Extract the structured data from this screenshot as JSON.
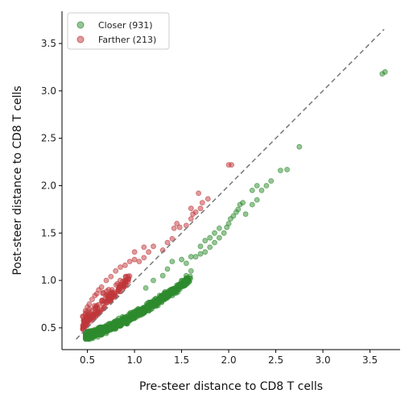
{
  "chart_data": {
    "type": "scatter",
    "title": "",
    "xlabel": "Pre-steer distance to CD8 T cells",
    "ylabel": "Post-steer distance to CD8 T cells",
    "xlim": [
      0.23,
      3.82
    ],
    "ylim": [
      0.27,
      3.84
    ],
    "xticks": [
      "0.5",
      "1.0",
      "1.5",
      "2.0",
      "2.5",
      "3.0",
      "3.5"
    ],
    "yticks": [
      "0.5",
      "1.0",
      "1.5",
      "2.0",
      "2.5",
      "3.0",
      "3.5"
    ],
    "grid": false,
    "legend_position": "top-left",
    "reference_line": {
      "style": "dashed",
      "color": "#777777",
      "from": [
        0.38,
        0.38
      ],
      "to": [
        3.65,
        3.65
      ]
    },
    "series": [
      {
        "name": "Closer (931)",
        "color": "#2e8b2e",
        "cloud": {
          "count": 931,
          "x_range": [
            0.48,
            1.6
          ]
        },
        "points": [
          [
            0.55,
            0.4
          ],
          [
            0.6,
            0.42
          ],
          [
            0.65,
            0.45
          ],
          [
            0.7,
            0.44
          ],
          [
            0.75,
            0.48
          ],
          [
            0.8,
            0.5
          ],
          [
            0.85,
            0.52
          ],
          [
            0.9,
            0.55
          ],
          [
            0.95,
            0.58
          ],
          [
            1.0,
            0.6
          ],
          [
            1.05,
            0.63
          ],
          [
            1.1,
            0.66
          ],
          [
            1.15,
            0.7
          ],
          [
            1.2,
            0.74
          ],
          [
            1.25,
            0.78
          ],
          [
            1.3,
            0.82
          ],
          [
            1.35,
            0.86
          ],
          [
            1.4,
            0.9
          ],
          [
            1.45,
            0.95
          ],
          [
            1.5,
            1.0
          ],
          [
            1.55,
            1.05
          ],
          [
            1.6,
            1.1
          ],
          [
            1.12,
            0.92
          ],
          [
            1.2,
            1.0
          ],
          [
            1.3,
            1.05
          ],
          [
            1.35,
            1.12
          ],
          [
            1.4,
            1.2
          ],
          [
            1.5,
            1.22
          ],
          [
            1.55,
            1.18
          ],
          [
            1.6,
            1.25
          ],
          [
            1.65,
            1.25
          ],
          [
            1.7,
            1.28
          ],
          [
            1.7,
            1.36
          ],
          [
            1.75,
            1.3
          ],
          [
            1.75,
            1.42
          ],
          [
            1.8,
            1.35
          ],
          [
            1.8,
            1.45
          ],
          [
            1.85,
            1.4
          ],
          [
            1.85,
            1.5
          ],
          [
            1.9,
            1.45
          ],
          [
            1.9,
            1.55
          ],
          [
            1.95,
            1.5
          ],
          [
            1.98,
            1.56
          ],
          [
            2.0,
            1.6
          ],
          [
            2.02,
            1.65
          ],
          [
            2.05,
            1.68
          ],
          [
            2.08,
            1.72
          ],
          [
            2.1,
            1.75
          ],
          [
            2.12,
            1.8
          ],
          [
            2.15,
            1.82
          ],
          [
            2.18,
            1.7
          ],
          [
            2.25,
            1.8
          ],
          [
            2.3,
            1.85
          ],
          [
            2.25,
            1.95
          ],
          [
            2.3,
            2.0
          ],
          [
            2.35,
            1.95
          ],
          [
            2.4,
            2.0
          ],
          [
            2.45,
            2.05
          ],
          [
            2.55,
            2.16
          ],
          [
            2.62,
            2.17
          ],
          [
            2.75,
            2.41
          ],
          [
            3.63,
            3.18
          ],
          [
            3.66,
            3.2
          ]
        ]
      },
      {
        "name": "Farther (213)",
        "color": "#c0383b",
        "cloud": {
          "count": 213,
          "x_range": [
            0.45,
            0.95
          ]
        },
        "points": [
          [
            0.45,
            0.62
          ],
          [
            0.48,
            0.68
          ],
          [
            0.5,
            0.72
          ],
          [
            0.52,
            0.75
          ],
          [
            0.55,
            0.8
          ],
          [
            0.58,
            0.84
          ],
          [
            0.6,
            0.86
          ],
          [
            0.62,
            0.9
          ],
          [
            0.65,
            0.93
          ],
          [
            0.7,
            1.0
          ],
          [
            0.75,
            1.04
          ],
          [
            0.8,
            1.1
          ],
          [
            0.85,
            1.14
          ],
          [
            0.9,
            1.16
          ],
          [
            0.95,
            1.2
          ],
          [
            1.0,
            1.22
          ],
          [
            1.05,
            1.2
          ],
          [
            1.1,
            1.24
          ],
          [
            1.0,
            1.3
          ],
          [
            1.1,
            1.35
          ],
          [
            1.15,
            1.3
          ],
          [
            1.2,
            1.36
          ],
          [
            1.3,
            1.32
          ],
          [
            1.35,
            1.4
          ],
          [
            1.4,
            1.44
          ],
          [
            1.42,
            1.55
          ],
          [
            1.45,
            1.6
          ],
          [
            1.48,
            1.56
          ],
          [
            1.55,
            1.58
          ],
          [
            1.6,
            1.65
          ],
          [
            1.62,
            1.7
          ],
          [
            1.6,
            1.76
          ],
          [
            1.65,
            1.72
          ],
          [
            1.7,
            1.76
          ],
          [
            1.72,
            1.82
          ],
          [
            1.68,
            1.92
          ],
          [
            1.78,
            1.86
          ],
          [
            2.0,
            2.22
          ],
          [
            2.03,
            2.22
          ]
        ]
      }
    ]
  }
}
